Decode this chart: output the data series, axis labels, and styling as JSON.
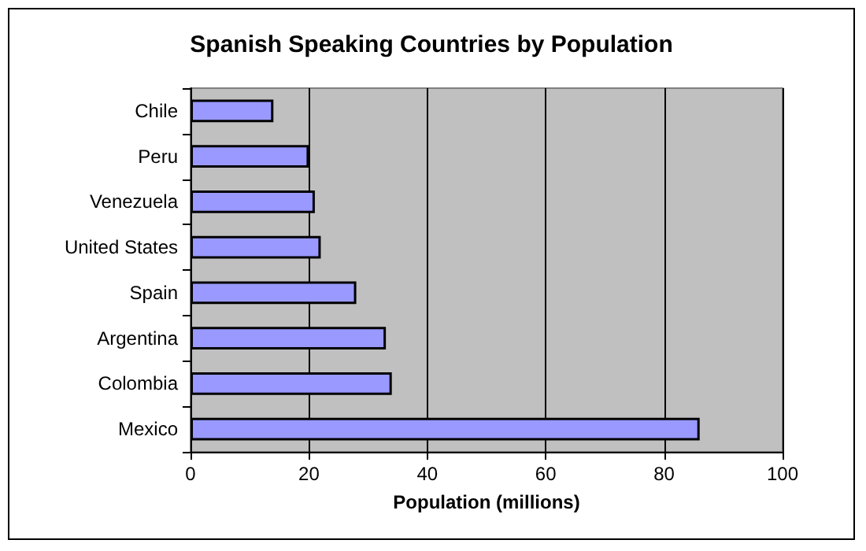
{
  "chart_data": {
    "type": "bar",
    "orientation": "horizontal",
    "title": "Spanish Speaking Countries by Population",
    "xlabel": "Population (millions)",
    "categories": [
      "Chile",
      "Peru",
      "Venezuela",
      "United States",
      "Spain",
      "Argentina",
      "Colombia",
      "Mexico"
    ],
    "values": [
      14,
      20,
      21,
      22,
      28,
      33,
      34,
      86
    ],
    "color": "#9999ff",
    "xlim": [
      0,
      100
    ],
    "xticks": [
      0,
      20,
      40,
      60,
      80,
      100
    ],
    "grid": "x"
  }
}
